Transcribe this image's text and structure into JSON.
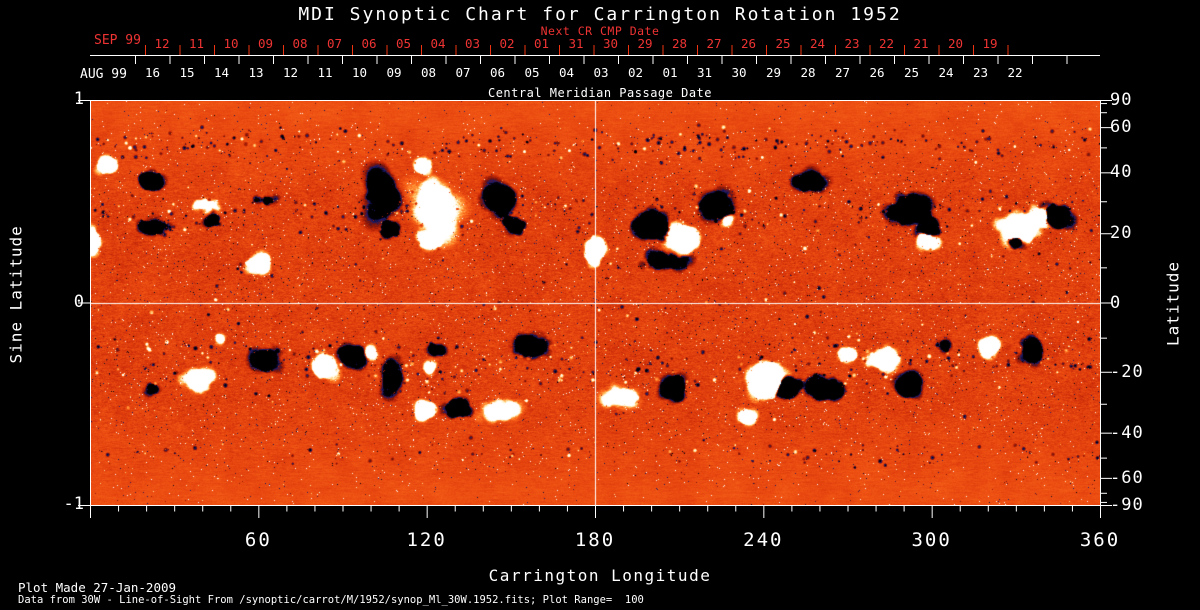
{
  "chart": {
    "title": "MDI Synoptic Chart for Carrington Rotation 1952",
    "top_axis": {
      "next_cr_label": "Next CR CMP Date",
      "next_cr_month": "SEP 99",
      "next_cr_days": [
        "12",
        "11",
        "10",
        "09",
        "08",
        "07",
        "06",
        "05",
        "04",
        "03",
        "02",
        "01",
        "31",
        "30",
        "29",
        "28",
        "27",
        "26",
        "25",
        "24",
        "23",
        "22",
        "21",
        "20",
        "19"
      ],
      "cmp_month": "AUG 99",
      "cmp_days": [
        "16",
        "15",
        "14",
        "13",
        "12",
        "11",
        "10",
        "09",
        "08",
        "07",
        "06",
        "05",
        "04",
        "03",
        "02",
        "01",
        "31",
        "30",
        "29",
        "28",
        "27",
        "26",
        "25",
        "24",
        "23",
        "22"
      ],
      "cmp_title": "Central Meridian Passage Date"
    },
    "left_axis": {
      "title": "Sine Latitude",
      "tick_labels": [
        "1",
        "0",
        "-1"
      ],
      "tick_values": [
        1,
        0,
        -1
      ]
    },
    "right_axis": {
      "title": "Latitude",
      "tick_labels": [
        "90",
        "60",
        "40",
        "20",
        "0",
        "-20",
        "-40",
        "-60",
        "-90"
      ],
      "tick_values": [
        90,
        60,
        40,
        20,
        0,
        -20,
        -40,
        -60,
        -90
      ],
      "minor_tick_values": [
        80,
        70,
        50,
        30,
        10,
        -10,
        -30,
        -50,
        -70,
        -80
      ]
    },
    "bottom_axis": {
      "title": "Carrington Longitude",
      "tick_labels": [
        "60",
        "120",
        "180",
        "240",
        "300",
        "360"
      ],
      "tick_values": [
        60,
        120,
        180,
        240,
        300,
        360
      ],
      "minor_step": 10,
      "range": [
        0,
        360
      ]
    },
    "colors": {
      "accent_red": "#ee3311",
      "foreground": "#ffffff",
      "background": "#000000"
    }
  },
  "footer": {
    "plot_made": "Plot Made 27-Jan-2009",
    "data_source": "Data from 30W - Line-of-Sight From /synoptic/carrot/M/1952/synop_Ml_30W.1952.fits; Plot Range=  100"
  },
  "chart_data": {
    "type": "heatmap",
    "description": "Line-of-sight photospheric magnetic field synoptic map, Carrington rotation 1952. Orange/red granular background (weak field) with bipolar active regions: black/navy = negative polarity, white/yellow = positive polarity. Activity concentrated in belts near sine latitude +0.4 and -0.35.",
    "x_range_deg": [
      0,
      360
    ],
    "sine_lat_range": [
      -1,
      1
    ],
    "plot_range_gauss": 100,
    "crosshair": {
      "longitude": 180,
      "latitude": 0
    },
    "palette_stops": [
      [
        -140,
        "#000000"
      ],
      [
        -95,
        "#000008"
      ],
      [
        -72,
        "#1c1c72"
      ],
      [
        -50,
        "#6e1410"
      ],
      [
        -28,
        "#a81f06"
      ],
      [
        -8,
        "#d2300a"
      ],
      [
        14,
        "#ea4a10"
      ],
      [
        38,
        "#fa681c"
      ],
      [
        58,
        "#ffa040"
      ],
      [
        72,
        "#ffd080"
      ],
      [
        88,
        "#fff6d8"
      ],
      [
        110,
        "#ffffff"
      ],
      [
        140,
        "#ffffff"
      ]
    ],
    "noise": {
      "mean_g": 6,
      "sigma_g": 26,
      "polar_brightening_g": 12,
      "streak_correlation": 0.45,
      "polar_streak_boost": 0.38
    },
    "speckle_bands": [
      {
        "slat": 0.78,
        "sigma": 0.12,
        "count": 260,
        "neg_fraction": 0.85
      },
      {
        "slat": 0.45,
        "sigma": 0.15,
        "count": 190,
        "neg_fraction": 0.75
      },
      {
        "slat": -0.3,
        "sigma": 0.18,
        "count": 230,
        "neg_fraction": 0.72
      },
      {
        "slat": -0.75,
        "sigma": 0.1,
        "count": 90,
        "neg_fraction": 0.8
      },
      {
        "slat": 0.0,
        "sigma": 0.9,
        "count": 160,
        "neg_fraction": 0.6
      }
    ],
    "features": [
      {
        "lon": 6,
        "slat": 0.68,
        "rlon": 5,
        "rslat": 0.05,
        "amp": 120
      },
      {
        "lon": 22,
        "slat": 0.6,
        "rlon": 6.4,
        "rslat": 0.06,
        "amp": -110
      },
      {
        "lon": 23,
        "slat": 0.38,
        "rlon": 9,
        "rslat": 0.05,
        "amp": -60
      },
      {
        "lon": 1,
        "slat": 0.31,
        "rlon": 3,
        "rslat": 0.12,
        "amp": 90
      },
      {
        "lon": 43,
        "slat": 0.41,
        "rlon": 4.3,
        "rslat": 0.04,
        "amp": -100
      },
      {
        "lon": 41,
        "slat": 0.48,
        "rlon": 7,
        "rslat": 0.04,
        "amp": 60
      },
      {
        "lon": 62,
        "slat": 0.51,
        "rlon": 7,
        "rslat": 0.03,
        "amp": -55
      },
      {
        "lon": 60,
        "slat": 0.19,
        "rlon": 5.7,
        "rslat": 0.06,
        "amp": 110
      },
      {
        "lon": 104,
        "slat": 0.53,
        "rlon": 9,
        "rslat": 0.2,
        "amp": -70
      },
      {
        "lon": 107,
        "slat": 0.36,
        "rlon": 5,
        "rslat": 0.05,
        "amp": -115
      },
      {
        "lon": 123,
        "slat": 0.48,
        "rlon": 12.5,
        "rslat": 0.25,
        "amp": 55
      },
      {
        "lon": 119,
        "slat": 0.68,
        "rlon": 4.3,
        "rslat": 0.05,
        "amp": 95
      },
      {
        "lon": 121,
        "slat": 0.31,
        "rlon": 5.3,
        "rslat": 0.06,
        "amp": 90
      },
      {
        "lon": 147,
        "slat": 0.51,
        "rlon": 8,
        "rslat": 0.09,
        "amp": -90
      },
      {
        "lon": 151,
        "slat": 0.38,
        "rlon": 5.3,
        "rslat": 0.05,
        "amp": -100
      },
      {
        "lon": 180,
        "slat": 0.26,
        "rlon": 4.3,
        "rslat": 0.1,
        "amp": 115
      },
      {
        "lon": 200,
        "slat": 0.38,
        "rlon": 8,
        "rslat": 0.09,
        "amp": -130
      },
      {
        "lon": 210,
        "slat": 0.31,
        "rlon": 9,
        "rslat": 0.09,
        "amp": 130
      },
      {
        "lon": 205,
        "slat": 0.21,
        "rlon": 14,
        "rslat": 0.06,
        "amp": -75
      },
      {
        "lon": 223,
        "slat": 0.48,
        "rlon": 9,
        "rslat": 0.1,
        "amp": -55
      },
      {
        "lon": 227,
        "slat": 0.41,
        "rlon": 3,
        "rslat": 0.04,
        "amp": 70
      },
      {
        "lon": 257,
        "slat": 0.6,
        "rlon": 9,
        "rslat": 0.075,
        "amp": -50
      },
      {
        "lon": 292,
        "slat": 0.46,
        "rlon": 10.7,
        "rslat": 0.1,
        "amp": -85
      },
      {
        "lon": 299,
        "slat": 0.38,
        "rlon": 5.3,
        "rslat": 0.06,
        "amp": -120
      },
      {
        "lon": 298,
        "slat": 0.31,
        "rlon": 5.3,
        "rslat": 0.05,
        "amp": 85
      },
      {
        "lon": 331,
        "slat": 0.36,
        "rlon": 10.7,
        "rslat": 0.1,
        "amp": 125
      },
      {
        "lon": 339,
        "slat": 0.43,
        "rlon": 5.3,
        "rslat": 0.06,
        "amp": 110
      },
      {
        "lon": 344,
        "slat": 0.43,
        "rlon": 7,
        "rslat": 0.075,
        "amp": -120
      },
      {
        "lon": 330,
        "slat": 0.31,
        "rlon": 4.3,
        "rslat": 0.05,
        "amp": -90
      },
      {
        "lon": 46,
        "slat": -0.175,
        "rlon": 2,
        "rslat": 0.05,
        "amp": 80
      },
      {
        "lon": 62,
        "slat": -0.28,
        "rlon": 8,
        "rslat": 0.07,
        "amp": -85
      },
      {
        "lon": 39,
        "slat": -0.38,
        "rlon": 9,
        "rslat": 0.075,
        "amp": 50
      },
      {
        "lon": 84,
        "slat": -0.31,
        "rlon": 5.3,
        "rslat": 0.075,
        "amp": 120
      },
      {
        "lon": 93,
        "slat": -0.26,
        "rlon": 5.7,
        "rslat": 0.06,
        "amp": -120
      },
      {
        "lon": 100,
        "slat": -0.245,
        "rlon": 3.6,
        "rslat": 0.04,
        "amp": 80
      },
      {
        "lon": 107,
        "slat": -0.36,
        "rlon": 5.3,
        "rslat": 0.17,
        "amp": -55
      },
      {
        "lon": 123,
        "slat": -0.235,
        "rlon": 5.3,
        "rslat": 0.04,
        "amp": -60
      },
      {
        "lon": 121,
        "slat": -0.32,
        "rlon": 3.6,
        "rslat": 0.04,
        "amp": 70
      },
      {
        "lon": 119,
        "slat": -0.53,
        "rlon": 5.7,
        "rslat": 0.06,
        "amp": 115
      },
      {
        "lon": 131,
        "slat": -0.52,
        "rlon": 6.4,
        "rslat": 0.06,
        "amp": -125
      },
      {
        "lon": 146,
        "slat": -0.53,
        "rlon": 10.7,
        "rslat": 0.075,
        "amp": 55
      },
      {
        "lon": 157,
        "slat": -0.21,
        "rlon": 10.7,
        "rslat": 0.075,
        "amp": -50
      },
      {
        "lon": 189,
        "slat": -0.46,
        "rlon": 10.7,
        "rslat": 0.075,
        "amp": 50
      },
      {
        "lon": 22,
        "slat": -0.43,
        "rlon": 3.6,
        "rslat": 0.04,
        "amp": -70
      },
      {
        "lon": 208,
        "slat": -0.42,
        "rlon": 8,
        "rslat": 0.075,
        "amp": -80
      },
      {
        "lon": 241,
        "slat": -0.38,
        "rlon": 10,
        "rslat": 0.11,
        "amp": 130
      },
      {
        "lon": 249,
        "slat": -0.41,
        "rlon": 5.7,
        "rslat": 0.07,
        "amp": -130
      },
      {
        "lon": 234,
        "slat": -0.56,
        "rlon": 5,
        "rslat": 0.05,
        "amp": 90
      },
      {
        "lon": 262,
        "slat": -0.43,
        "rlon": 9,
        "rslat": 0.075,
        "amp": -95
      },
      {
        "lon": 270,
        "slat": -0.26,
        "rlon": 4.6,
        "rslat": 0.045,
        "amp": 95
      },
      {
        "lon": 282,
        "slat": -0.28,
        "rlon": 9,
        "rslat": 0.075,
        "amp": 55
      },
      {
        "lon": 284,
        "slat": -0.245,
        "rlon": 2.9,
        "rslat": 0.04,
        "amp": 90
      },
      {
        "lon": 292,
        "slat": -0.41,
        "rlon": 5.3,
        "rslat": 0.075,
        "amp": -90
      },
      {
        "lon": 304,
        "slat": -0.21,
        "rlon": 3.6,
        "rslat": 0.04,
        "amp": -80
      },
      {
        "lon": 320,
        "slat": -0.21,
        "rlon": 5.3,
        "rslat": 0.06,
        "amp": 60
      },
      {
        "lon": 336,
        "slat": -0.235,
        "rlon": 6.4,
        "rslat": 0.07,
        "amp": -85
      }
    ]
  }
}
